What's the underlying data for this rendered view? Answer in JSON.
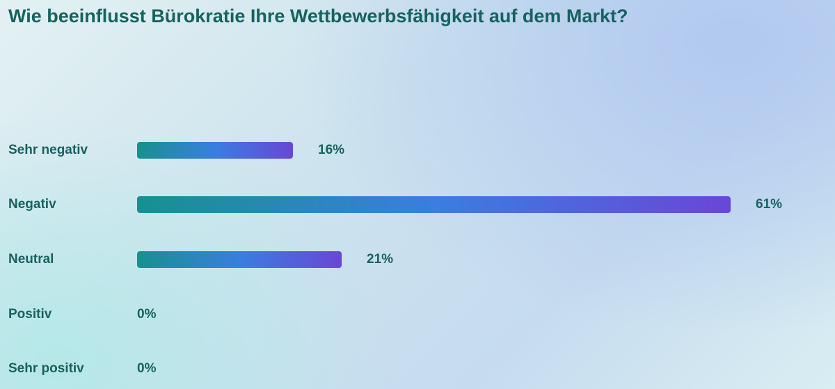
{
  "title": "Wie beeinflusst Bürokratie Ihre Wettbewerbsfähigkeit auf dem Markt?",
  "chart_data": {
    "type": "bar",
    "orientation": "horizontal",
    "title": "Wie beeinflusst Bürokratie Ihre Wettbewerbsfähigkeit auf dem Markt?",
    "categories": [
      "Sehr negativ",
      "Negativ",
      "Neutral",
      "Positiv",
      "Sehr positiv"
    ],
    "values": [
      16,
      61,
      21,
      0,
      0
    ],
    "value_labels": [
      "16%",
      "61%",
      "21%",
      "0%",
      "0%"
    ],
    "unit": "%",
    "xlim": [
      0,
      61
    ],
    "grid": false,
    "legend": "none",
    "bar_gradient": [
      "#16918f",
      "#3a7ee0",
      "#6a46d6"
    ]
  },
  "colors": {
    "text": "#17625f"
  }
}
